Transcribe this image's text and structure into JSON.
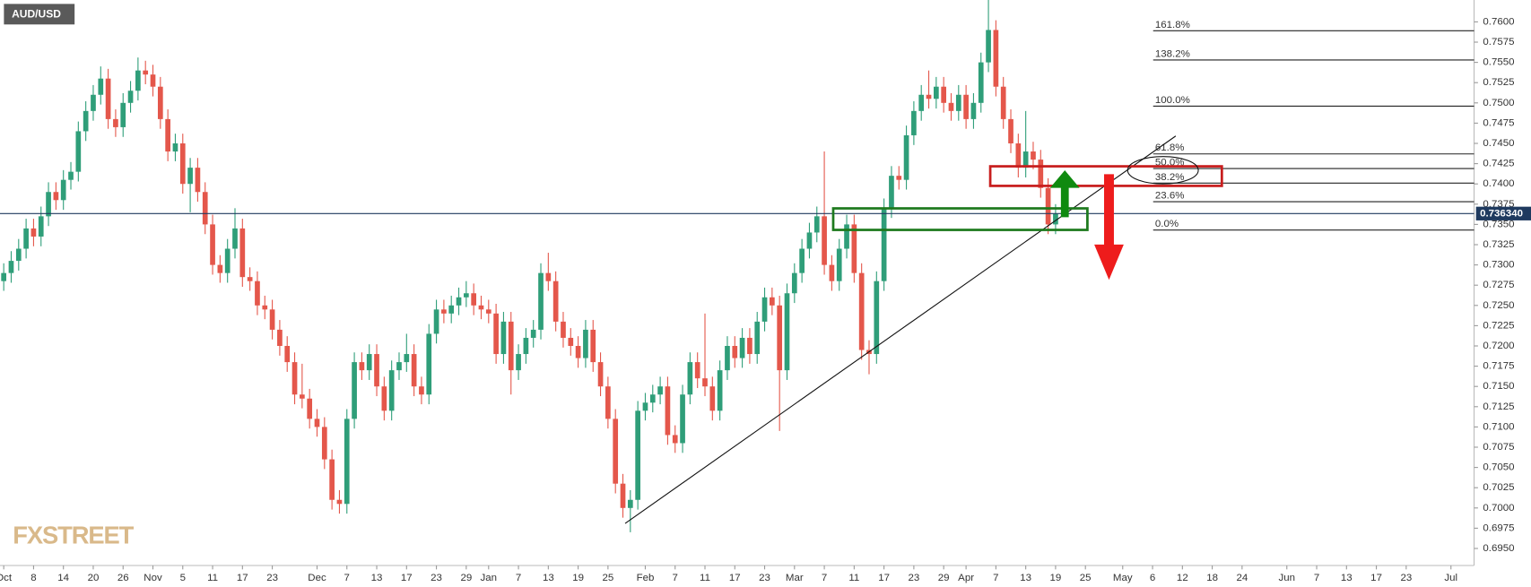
{
  "chart_data": {
    "type": "candlestick",
    "title": "AUD/USD",
    "watermark": "FXSTREET",
    "up_color": "#2f9e79",
    "down_color": "#e4574b",
    "open": [
      0.728,
      0.729,
      0.7305,
      0.732,
      0.7345,
      0.7335,
      0.736,
      0.739,
      0.738,
      0.7405,
      0.7415,
      0.7465,
      0.749,
      0.751,
      0.753,
      0.748,
      0.747,
      0.75,
      0.7515,
      0.754,
      0.7535,
      0.752,
      0.748,
      0.744,
      0.745,
      0.74,
      0.742,
      0.739,
      0.735,
      0.73,
      0.729,
      0.732,
      0.7345,
      0.7285,
      0.728,
      0.725,
      0.7245,
      0.722,
      0.72,
      0.718,
      0.714,
      0.7135,
      0.711,
      0.71,
      0.706,
      0.701,
      0.7005,
      0.711,
      0.718,
      0.717,
      0.719,
      0.715,
      0.712,
      0.717,
      0.718,
      0.719,
      0.715,
      0.714,
      0.7215,
      0.7245,
      0.724,
      0.725,
      0.726,
      0.7265,
      0.725,
      0.7245,
      0.724,
      0.719,
      0.723,
      0.717,
      0.719,
      0.721,
      0.722,
      0.729,
      0.728,
      0.723,
      0.721,
      0.72,
      0.7185,
      0.722,
      0.718,
      0.715,
      0.711,
      0.703,
      0.7,
      0.701,
      0.712,
      0.713,
      0.714,
      0.715,
      0.709,
      0.708,
      0.714,
      0.718,
      0.716,
      0.715,
      0.712,
      0.717,
      0.72,
      0.7185,
      0.721,
      0.719,
      0.723,
      0.726,
      0.725,
      0.717,
      0.7265,
      0.729,
      0.732,
      0.734,
      0.736,
      0.73,
      0.728,
      0.732,
      0.735,
      0.729,
      0.7195,
      0.719,
      0.728,
      0.737,
      0.741,
      0.7405,
      0.746,
      0.749,
      0.751,
      0.7505,
      0.752,
      0.75,
      0.749,
      0.751,
      0.748,
      0.75,
      0.755,
      0.759,
      0.752,
      0.748,
      0.745,
      0.742,
      0.744,
      0.743,
      0.7395,
      0.735
    ],
    "high": [
      0.7302,
      0.7317,
      0.7332,
      0.7357,
      0.7357,
      0.7372,
      0.7402,
      0.7402,
      0.7417,
      0.7427,
      0.7477,
      0.7502,
      0.7522,
      0.7545,
      0.7542,
      0.7492,
      0.7512,
      0.7527,
      0.7556,
      0.7552,
      0.7547,
      0.7532,
      0.7492,
      0.7462,
      0.7462,
      0.7432,
      0.7432,
      0.7402,
      0.7362,
      0.7312,
      0.7332,
      0.737,
      0.7357,
      0.7297,
      0.7292,
      0.7262,
      0.7257,
      0.7232,
      0.7212,
      0.7192,
      0.7178,
      0.7147,
      0.7122,
      0.7112,
      0.7072,
      0.7022,
      0.7122,
      0.7192,
      0.7192,
      0.7202,
      0.7202,
      0.7162,
      0.7182,
      0.7192,
      0.7215,
      0.7202,
      0.7162,
      0.7227,
      0.7257,
      0.7257,
      0.7262,
      0.7272,
      0.728,
      0.7277,
      0.7262,
      0.7257,
      0.7252,
      0.7242,
      0.7242,
      0.7202,
      0.7222,
      0.7232,
      0.7302,
      0.7315,
      0.7292,
      0.7242,
      0.7222,
      0.7212,
      0.7232,
      0.7232,
      0.7192,
      0.7162,
      0.7122,
      0.7042,
      0.7022,
      0.7132,
      0.7142,
      0.7152,
      0.7162,
      0.7162,
      0.7102,
      0.7152,
      0.7192,
      0.7192,
      0.724,
      0.7162,
      0.7182,
      0.7212,
      0.7212,
      0.7222,
      0.7222,
      0.7242,
      0.7272,
      0.7272,
      0.7262,
      0.7277,
      0.7302,
      0.7332,
      0.7352,
      0.7372,
      0.744,
      0.7312,
      0.7332,
      0.7362,
      0.7362,
      0.7302,
      0.7207,
      0.7292,
      0.7382,
      0.7422,
      0.7422,
      0.7472,
      0.7502,
      0.7522,
      0.754,
      0.7532,
      0.7532,
      0.7512,
      0.7522,
      0.7522,
      0.7512,
      0.7562,
      0.7627,
      0.7602,
      0.7532,
      0.7492,
      0.7462,
      0.749,
      0.7452,
      0.7442,
      0.7407,
      0.7375
    ],
    "low": [
      0.7268,
      0.7278,
      0.7293,
      0.7308,
      0.7323,
      0.7323,
      0.7348,
      0.7368,
      0.7368,
      0.7393,
      0.7403,
      0.7453,
      0.7478,
      0.7498,
      0.7468,
      0.7458,
      0.7458,
      0.7488,
      0.7503,
      0.7523,
      0.7508,
      0.7468,
      0.7428,
      0.7428,
      0.7388,
      0.7365,
      0.7378,
      0.7338,
      0.7288,
      0.7278,
      0.7278,
      0.7308,
      0.7273,
      0.7268,
      0.7238,
      0.7233,
      0.7208,
      0.7188,
      0.7168,
      0.7128,
      0.7123,
      0.7098,
      0.7088,
      0.7048,
      0.6998,
      0.6993,
      0.6993,
      0.7098,
      0.7158,
      0.7158,
      0.7138,
      0.7108,
      0.7108,
      0.7158,
      0.7168,
      0.7138,
      0.7128,
      0.7128,
      0.7203,
      0.7228,
      0.7228,
      0.7238,
      0.7248,
      0.7238,
      0.7233,
      0.7228,
      0.7178,
      0.7178,
      0.714,
      0.7158,
      0.7178,
      0.7198,
      0.7208,
      0.7268,
      0.7218,
      0.7198,
      0.7188,
      0.7173,
      0.7173,
      0.7168,
      0.7138,
      0.7098,
      0.7018,
      0.6988,
      0.697,
      0.6998,
      0.7108,
      0.7118,
      0.7128,
      0.7078,
      0.7068,
      0.7068,
      0.7128,
      0.7148,
      0.7138,
      0.7108,
      0.7108,
      0.7158,
      0.7173,
      0.7173,
      0.7178,
      0.7178,
      0.7218,
      0.7238,
      0.7095,
      0.7158,
      0.7253,
      0.7278,
      0.7308,
      0.7328,
      0.7288,
      0.7268,
      0.7268,
      0.7308,
      0.7278,
      0.7183,
      0.7165,
      0.7178,
      0.7268,
      0.7358,
      0.7393,
      0.7393,
      0.7448,
      0.7478,
      0.7493,
      0.7493,
      0.7488,
      0.7478,
      0.7478,
      0.7468,
      0.7468,
      0.7488,
      0.7538,
      0.7508,
      0.7468,
      0.7438,
      0.7408,
      0.7408,
      0.7418,
      0.7383,
      0.7338,
      0.7338
    ],
    "close": [
      0.729,
      0.7305,
      0.732,
      0.7345,
      0.7335,
      0.736,
      0.739,
      0.738,
      0.7405,
      0.7415,
      0.7465,
      0.749,
      0.751,
      0.753,
      0.748,
      0.747,
      0.75,
      0.7515,
      0.754,
      0.7535,
      0.752,
      0.748,
      0.744,
      0.745,
      0.74,
      0.742,
      0.739,
      0.735,
      0.73,
      0.729,
      0.732,
      0.7345,
      0.7285,
      0.728,
      0.725,
      0.7245,
      0.722,
      0.72,
      0.718,
      0.714,
      0.7135,
      0.711,
      0.71,
      0.706,
      0.701,
      0.7005,
      0.711,
      0.718,
      0.717,
      0.719,
      0.715,
      0.712,
      0.717,
      0.718,
      0.719,
      0.715,
      0.714,
      0.7215,
      0.7245,
      0.724,
      0.725,
      0.726,
      0.7265,
      0.725,
      0.7245,
      0.724,
      0.719,
      0.723,
      0.717,
      0.719,
      0.721,
      0.722,
      0.729,
      0.728,
      0.723,
      0.721,
      0.72,
      0.7185,
      0.722,
      0.718,
      0.715,
      0.711,
      0.703,
      0.7,
      0.701,
      0.712,
      0.713,
      0.714,
      0.715,
      0.709,
      0.708,
      0.714,
      0.718,
      0.716,
      0.715,
      0.712,
      0.717,
      0.72,
      0.7185,
      0.721,
      0.719,
      0.723,
      0.726,
      0.725,
      0.717,
      0.7265,
      0.729,
      0.732,
      0.734,
      0.736,
      0.73,
      0.728,
      0.732,
      0.735,
      0.729,
      0.7195,
      0.719,
      0.728,
      0.737,
      0.741,
      0.7405,
      0.746,
      0.749,
      0.751,
      0.7505,
      0.752,
      0.75,
      0.749,
      0.751,
      0.748,
      0.75,
      0.755,
      0.759,
      0.752,
      0.748,
      0.745,
      0.742,
      0.744,
      0.743,
      0.7395,
      0.735,
      0.7363
    ],
    "xlim": [
      -0.5,
      197.1
    ],
    "xticks": [
      {
        "value": 0,
        "label": "Oct"
      },
      {
        "value": 4,
        "label": "8"
      },
      {
        "value": 8,
        "label": "14"
      },
      {
        "value": 12,
        "label": "20"
      },
      {
        "value": 16,
        "label": "26"
      },
      {
        "value": 20,
        "label": "Nov"
      },
      {
        "value": 24,
        "label": "5"
      },
      {
        "value": 28,
        "label": "11"
      },
      {
        "value": 32,
        "label": "17"
      },
      {
        "value": 36,
        "label": "23"
      },
      {
        "value": 42,
        "label": "Dec"
      },
      {
        "value": 46,
        "label": "7"
      },
      {
        "value": 50,
        "label": "13"
      },
      {
        "value": 54,
        "label": "17"
      },
      {
        "value": 58,
        "label": "23"
      },
      {
        "value": 62,
        "label": "29"
      },
      {
        "value": 65,
        "label": "Jan"
      },
      {
        "value": 69,
        "label": "7"
      },
      {
        "value": 73,
        "label": "13"
      },
      {
        "value": 77,
        "label": "19"
      },
      {
        "value": 81,
        "label": "25"
      },
      {
        "value": 86,
        "label": "Feb"
      },
      {
        "value": 90,
        "label": "7"
      },
      {
        "value": 94,
        "label": "11"
      },
      {
        "value": 98,
        "label": "17"
      },
      {
        "value": 102,
        "label": "23"
      },
      {
        "value": 106,
        "label": "Mar"
      },
      {
        "value": 110,
        "label": "7"
      },
      {
        "value": 114,
        "label": "11"
      },
      {
        "value": 118,
        "label": "17"
      },
      {
        "value": 122,
        "label": "23"
      },
      {
        "value": 126,
        "label": "29"
      },
      {
        "value": 129,
        "label": "Apr"
      },
      {
        "value": 133,
        "label": "7"
      },
      {
        "value": 137,
        "label": "13"
      },
      {
        "value": 141,
        "label": "19"
      },
      {
        "value": 145,
        "label": "25"
      },
      {
        "value": 150,
        "label": "May"
      },
      {
        "value": 154,
        "label": "6"
      },
      {
        "value": 158,
        "label": "12"
      },
      {
        "value": 162,
        "label": "18"
      },
      {
        "value": 166,
        "label": "24"
      },
      {
        "value": 172,
        "label": "Jun"
      },
      {
        "value": 176,
        "label": "7"
      },
      {
        "value": 180,
        "label": "13"
      },
      {
        "value": 184,
        "label": "17"
      },
      {
        "value": 188,
        "label": "23"
      },
      {
        "value": 194,
        "label": "Jul"
      }
    ],
    "ylim": [
      0.6929,
      0.7627
    ],
    "yticks": [
      {
        "value": 0.695,
        "label": "0.6950"
      },
      {
        "value": 0.6975,
        "label": "0.6975"
      },
      {
        "value": 0.7,
        "label": "0.7000"
      },
      {
        "value": 0.7025,
        "label": "0.7025"
      },
      {
        "value": 0.705,
        "label": "0.7050"
      },
      {
        "value": 0.7075,
        "label": "0.7075"
      },
      {
        "value": 0.71,
        "label": "0.7100"
      },
      {
        "value": 0.7125,
        "label": "0.7125"
      },
      {
        "value": 0.715,
        "label": "0.7150"
      },
      {
        "value": 0.7175,
        "label": "0.7175"
      },
      {
        "value": 0.72,
        "label": "0.7200"
      },
      {
        "value": 0.7225,
        "label": "0.7225"
      },
      {
        "value": 0.725,
        "label": "0.7250"
      },
      {
        "value": 0.7275,
        "label": "0.7275"
      },
      {
        "value": 0.73,
        "label": "0.7300"
      },
      {
        "value": 0.7325,
        "label": "0.7325"
      },
      {
        "value": 0.735,
        "label": "0.7350"
      },
      {
        "value": 0.7375,
        "label": "0.7375"
      },
      {
        "value": 0.74,
        "label": "0.7400"
      },
      {
        "value": 0.7425,
        "label": "0.7425"
      },
      {
        "value": 0.745,
        "label": "0.7450"
      },
      {
        "value": 0.7475,
        "label": "0.7475"
      },
      {
        "value": 0.75,
        "label": "0.7500"
      },
      {
        "value": 0.7525,
        "label": "0.7525"
      },
      {
        "value": 0.755,
        "label": "0.7550"
      },
      {
        "value": 0.7575,
        "label": "0.7575"
      },
      {
        "value": 0.76,
        "label": "0.7600"
      }
    ],
    "current_price": {
      "value": 0.73634,
      "label": "0.736340"
    },
    "fib_levels": [
      {
        "label": "161.8%",
        "value": 0.7589
      },
      {
        "label": "138.2%",
        "value": 0.7553
      },
      {
        "label": "100.0%",
        "value": 0.7496
      },
      {
        "label": "61.8%",
        "value": 0.7437
      },
      {
        "label": "50.0%",
        "value": 0.7419
      },
      {
        "label": "38.2%",
        "value": 0.7401
      },
      {
        "label": "23.6%",
        "value": 0.7378
      },
      {
        "label": "0.0%",
        "value": 0.7343
      }
    ]
  }
}
